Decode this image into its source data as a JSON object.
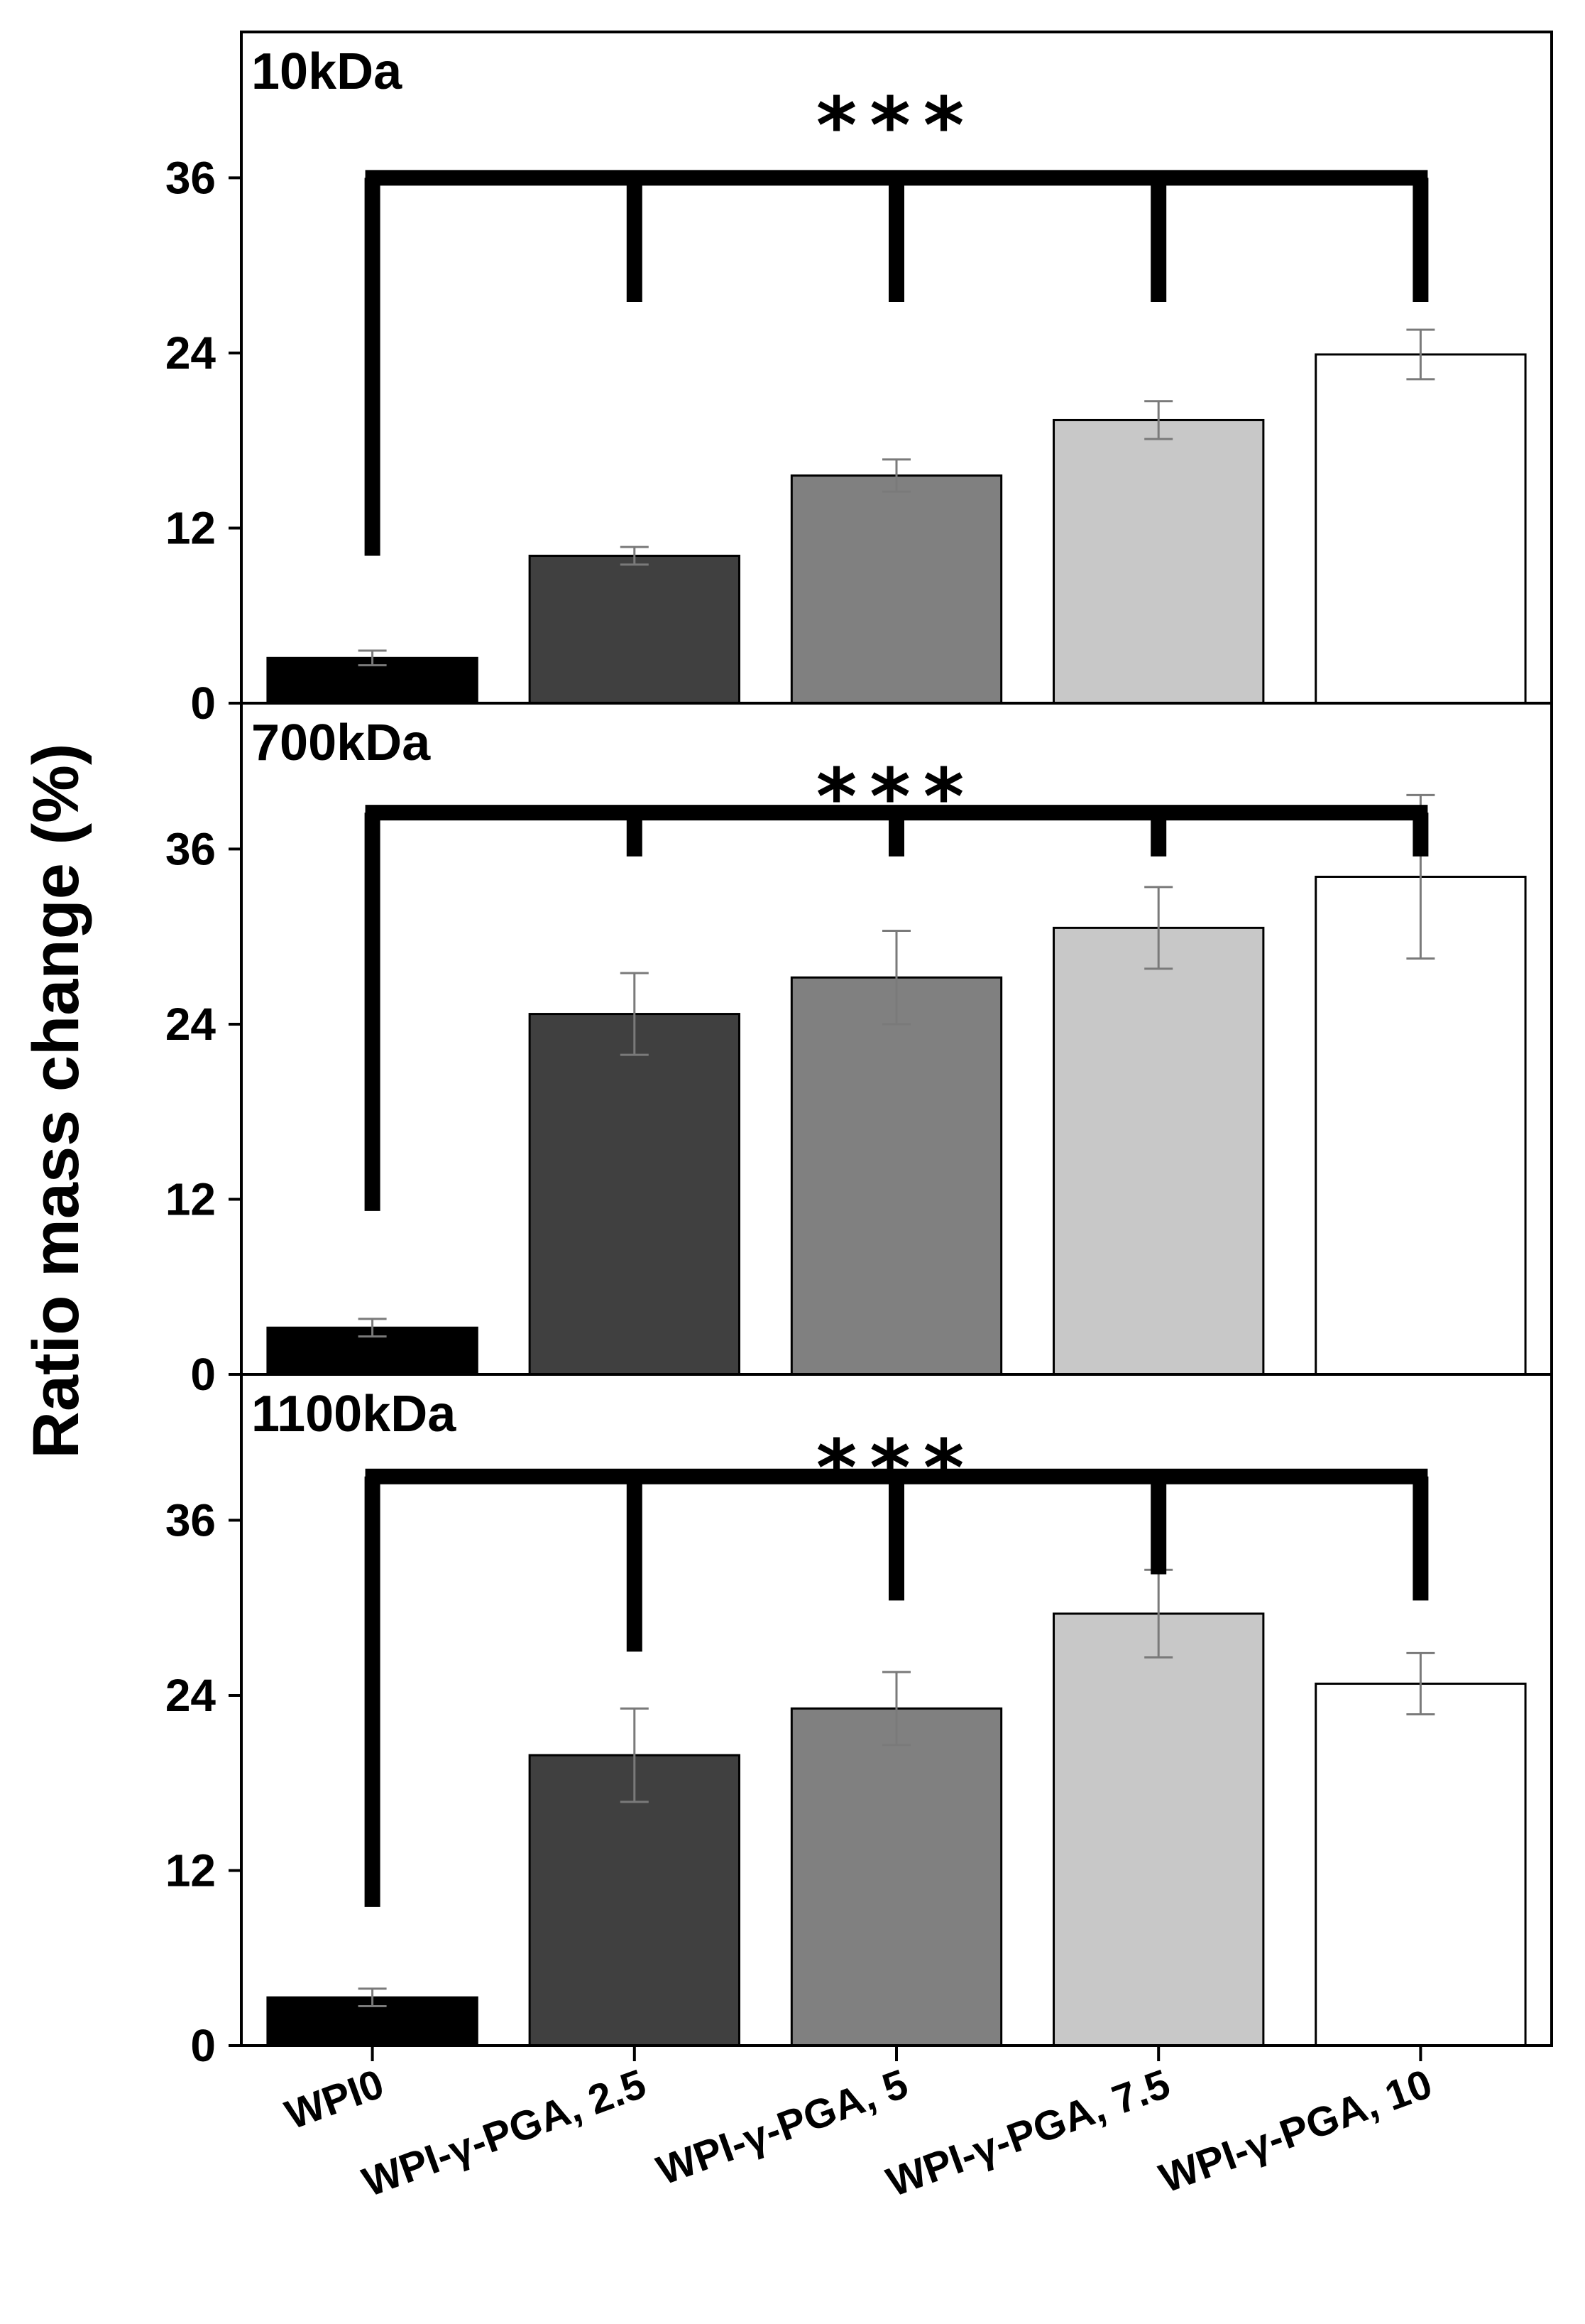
{
  "chart_data": {
    "type": "bar",
    "ylabel": "Ratio mass change (%)",
    "xlabel": "",
    "ylim": [
      0,
      46
    ],
    "yticks": [
      0,
      12,
      24,
      36
    ],
    "categories": [
      "WPI0",
      "WPI-γ-PGA, 2.5",
      "WPI-γ-PGA, 5",
      "WPI-γ-PGA, 7.5",
      "WPI-γ-PGA, 10"
    ],
    "bar_colors": [
      "#000000",
      "#404040",
      "#808080",
      "#c8c8c8",
      "#ffffff"
    ],
    "panels": [
      {
        "title": "10kDa",
        "significance": "***",
        "values": [
          3.1,
          10.1,
          15.6,
          19.4,
          23.9
        ],
        "errors": [
          0.5,
          0.6,
          1.1,
          1.3,
          1.7
        ],
        "bracket_y": 36,
        "bracket_drop_ends": [
          10.1,
          27.5,
          27.5,
          27.5,
          27.5
        ]
      },
      {
        "title": "700kDa",
        "significance": "***",
        "values": [
          3.2,
          24.7,
          27.2,
          30.6,
          34.1
        ],
        "errors": [
          0.6,
          2.8,
          3.2,
          2.8,
          5.6
        ],
        "bracket_y": 38.5,
        "bracket_drop_ends": [
          11.2,
          35.5,
          35.5,
          35.5,
          35.5
        ]
      },
      {
        "title": "1100kDa",
        "significance": "***",
        "values": [
          3.3,
          19.9,
          23.1,
          29.6,
          24.8
        ],
        "errors": [
          0.6,
          3.2,
          2.5,
          3.0,
          2.1
        ],
        "bracket_y": 39,
        "bracket_drop_ends": [
          9.5,
          27,
          30.5,
          32.3,
          30.5
        ]
      }
    ]
  }
}
